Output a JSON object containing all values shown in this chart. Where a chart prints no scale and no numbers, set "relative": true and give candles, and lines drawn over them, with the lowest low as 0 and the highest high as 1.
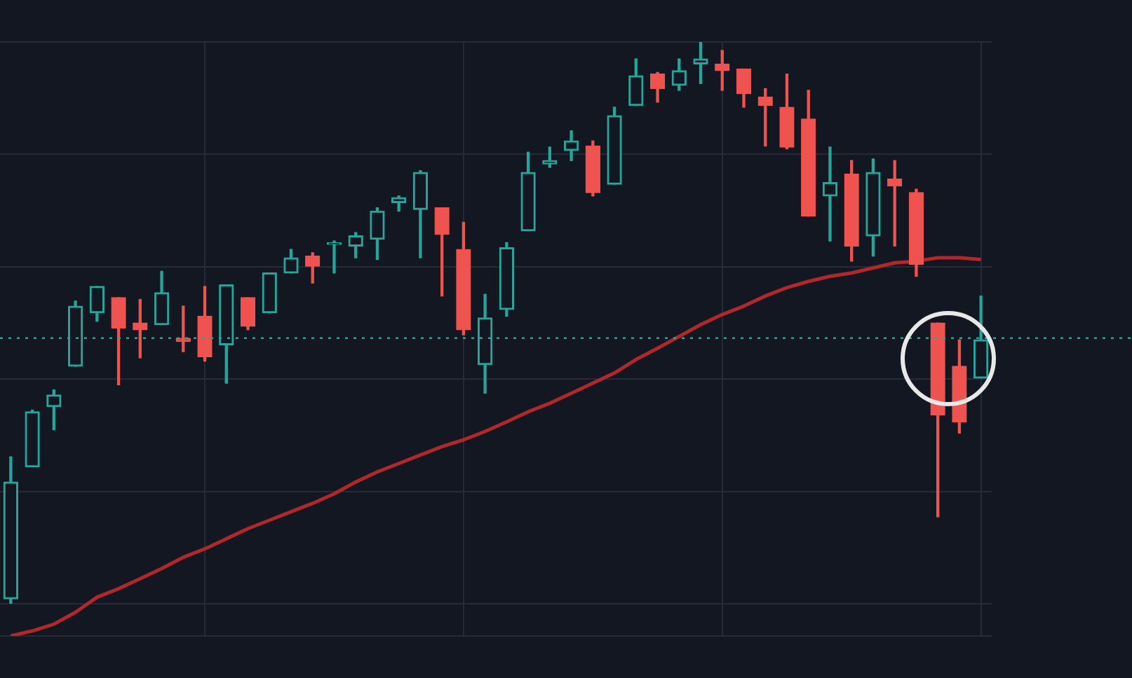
{
  "chart_data": {
    "type": "candlestick",
    "relative": true,
    "grid": true,
    "tick_labels": false,
    "marker": "none",
    "categories": [
      null,
      null,
      null,
      null,
      null,
      null,
      null,
      null,
      null,
      null,
      null,
      null,
      null,
      null,
      null,
      null,
      null,
      null,
      null,
      null,
      null,
      null,
      null,
      null,
      null,
      null,
      null,
      null,
      null,
      null,
      null,
      null,
      null,
      null,
      null,
      null,
      null,
      null,
      null,
      null,
      null,
      null,
      null,
      null,
      null,
      null
    ],
    "ohlc": [
      [
        0.009,
        0.262,
        0,
        0.217
      ],
      [
        0.244,
        0.345,
        0.244,
        0.342
      ],
      [
        0.351,
        0.381,
        0.31,
        0.372
      ],
      [
        0.423,
        0.539,
        0.423,
        0.53
      ],
      [
        0.518,
        0.565,
        0.503,
        0.565
      ],
      [
        0.545,
        0.545,
        0.39,
        0.491
      ],
      [
        0.5,
        0.542,
        0.438,
        0.488
      ],
      [
        0.497,
        0.592,
        0.497,
        0.554
      ],
      [
        0.473,
        0.53,
        0.449,
        0.467
      ],
      [
        0.512,
        0.565,
        0.432,
        0.44
      ],
      [
        0.461,
        0.568,
        0.393,
        0.568
      ],
      [
        0.545,
        0.545,
        0.488,
        0.494
      ],
      [
        0.518,
        0.589,
        0.518,
        0.589
      ],
      [
        0.589,
        0.631,
        0.589,
        0.616
      ],
      [
        0.619,
        0.625,
        0.571,
        0.601
      ],
      [
        0.64,
        0.646,
        0.589,
        0.643
      ],
      [
        0.637,
        0.661,
        0.616,
        0.655
      ],
      [
        0.649,
        0.705,
        0.613,
        0.699
      ],
      [
        0.714,
        0.726,
        0.699,
        0.723
      ],
      [
        0.702,
        0.771,
        0.616,
        0.768
      ],
      [
        0.705,
        0.705,
        0.548,
        0.658
      ],
      [
        0.631,
        0.679,
        0.479,
        0.488
      ],
      [
        0.426,
        0.551,
        0.375,
        0.509
      ],
      [
        0.524,
        0.643,
        0.512,
        0.634
      ],
      [
        0.664,
        0.804,
        0.664,
        0.768
      ],
      [
        0.783,
        0.813,
        0.777,
        0.789
      ],
      [
        0.807,
        0.842,
        0.789,
        0.824
      ],
      [
        0.815,
        0.824,
        0.726,
        0.732
      ],
      [
        0.747,
        0.884,
        0.747,
        0.869
      ],
      [
        0.887,
        0.97,
        0.887,
        0.94
      ],
      [
        0.943,
        0.946,
        0.893,
        0.917
      ],
      [
        0.923,
        0.97,
        0.914,
        0.949
      ],
      [
        0.961,
        1,
        0.926,
        0.97
      ],
      [
        0.961,
        0.985,
        0.914,
        0.949
      ],
      [
        0.952,
        0.952,
        0.884,
        0.908
      ],
      [
        0.902,
        0.917,
        0.815,
        0.887
      ],
      [
        0.884,
        0.943,
        0.81,
        0.813
      ],
      [
        0.863,
        0.914,
        0.69,
        0.69
      ],
      [
        0.726,
        0.813,
        0.646,
        0.75
      ],
      [
        0.765,
        0.789,
        0.61,
        0.637
      ],
      [
        0.655,
        0.792,
        0.619,
        0.768
      ],
      [
        0.756,
        0.789,
        0.637,
        0.744
      ],
      [
        0.732,
        0.738,
        0.583,
        0.604
      ],
      [
        0.5,
        0.5,
        0.155,
        0.336
      ],
      [
        0.423,
        0.47,
        0.304,
        0.324
      ],
      [
        0.402,
        0.548,
        0.402,
        0.47
      ]
    ],
    "colors": [
      "#26a69a",
      "#26a69a",
      "#26a69a",
      "#26a69a",
      "#26a69a",
      "#ef5350",
      "#ef5350",
      "#26a69a",
      "#ef5350",
      "#ef5350",
      "#26a69a",
      "#ef5350",
      "#26a69a",
      "#26a69a",
      "#ef5350",
      "#26a69a",
      "#26a69a",
      "#26a69a",
      "#26a69a",
      "#26a69a",
      "#ef5350",
      "#ef5350",
      "#26a69a",
      "#26a69a",
      "#26a69a",
      "#26a69a",
      "#26a69a",
      "#ef5350",
      "#26a69a",
      "#26a69a",
      "#ef5350",
      "#26a69a",
      "#26a69a",
      "#ef5350",
      "#ef5350",
      "#ef5350",
      "#ef5350",
      "#ef5350",
      "#26a69a",
      "#ef5350",
      "#26a69a",
      "#ef5350",
      "#ef5350",
      "#ef5350",
      "#ef5350",
      "#26a69a"
    ],
    "series": [
      {
        "type": "line",
        "color": "#b0272c",
        "values": [
          -0.057,
          -0.048,
          -0.036,
          -0.015,
          0.012,
          0.027,
          0.045,
          0.063,
          0.083,
          0.098,
          0.116,
          0.134,
          0.149,
          0.164,
          0.179,
          0.196,
          0.217,
          0.235,
          0.25,
          0.265,
          0.28,
          0.292,
          0.307,
          0.324,
          0.342,
          0.357,
          0.375,
          0.393,
          0.411,
          0.435,
          0.455,
          0.476,
          0.497,
          0.515,
          0.53,
          0.548,
          0.563,
          0.574,
          0.583,
          0.589,
          0.598,
          0.607,
          0.61,
          0.616,
          0.616,
          0.613
        ]
      }
    ],
    "ref_lines": [
      {
        "axis": "y",
        "value": 0.473,
        "color": "#26a69a",
        "line_style": "dotted"
      }
    ]
  }
}
